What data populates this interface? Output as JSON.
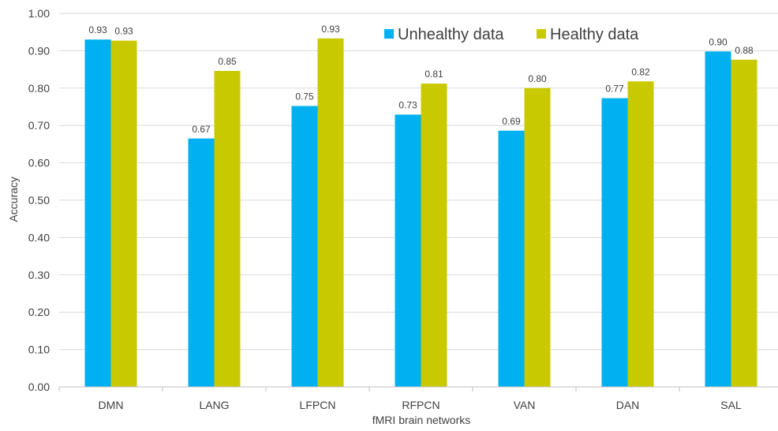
{
  "chart_data": {
    "type": "bar",
    "title": "",
    "xlabel": "fMRI brain networks",
    "ylabel": "Accuracy",
    "ylim": [
      0,
      1
    ],
    "ytick_step": 0.1,
    "grid": true,
    "legend_position": "top-right",
    "categories": [
      "DMN",
      "LANG",
      "LFPCN",
      "RFPCN",
      "VAN",
      "DAN",
      "SAL"
    ],
    "series": [
      {
        "name": "Unhealthy data",
        "color": "#00B0F0",
        "values": [
          0.93,
          0.665,
          0.752,
          0.729,
          0.686,
          0.773,
          0.898
        ],
        "labels": [
          "0.93",
          "0.67",
          "0.75",
          "0.73",
          "0.69",
          "0.77",
          "0.90"
        ]
      },
      {
        "name": "Healthy data",
        "color": "#C9C900",
        "values": [
          0.927,
          0.846,
          0.933,
          0.812,
          0.8,
          0.818,
          0.876
        ],
        "labels": [
          "0.93",
          "0.85",
          "0.93",
          "0.81",
          "0.80",
          "0.82",
          "0.88"
        ]
      }
    ]
  }
}
